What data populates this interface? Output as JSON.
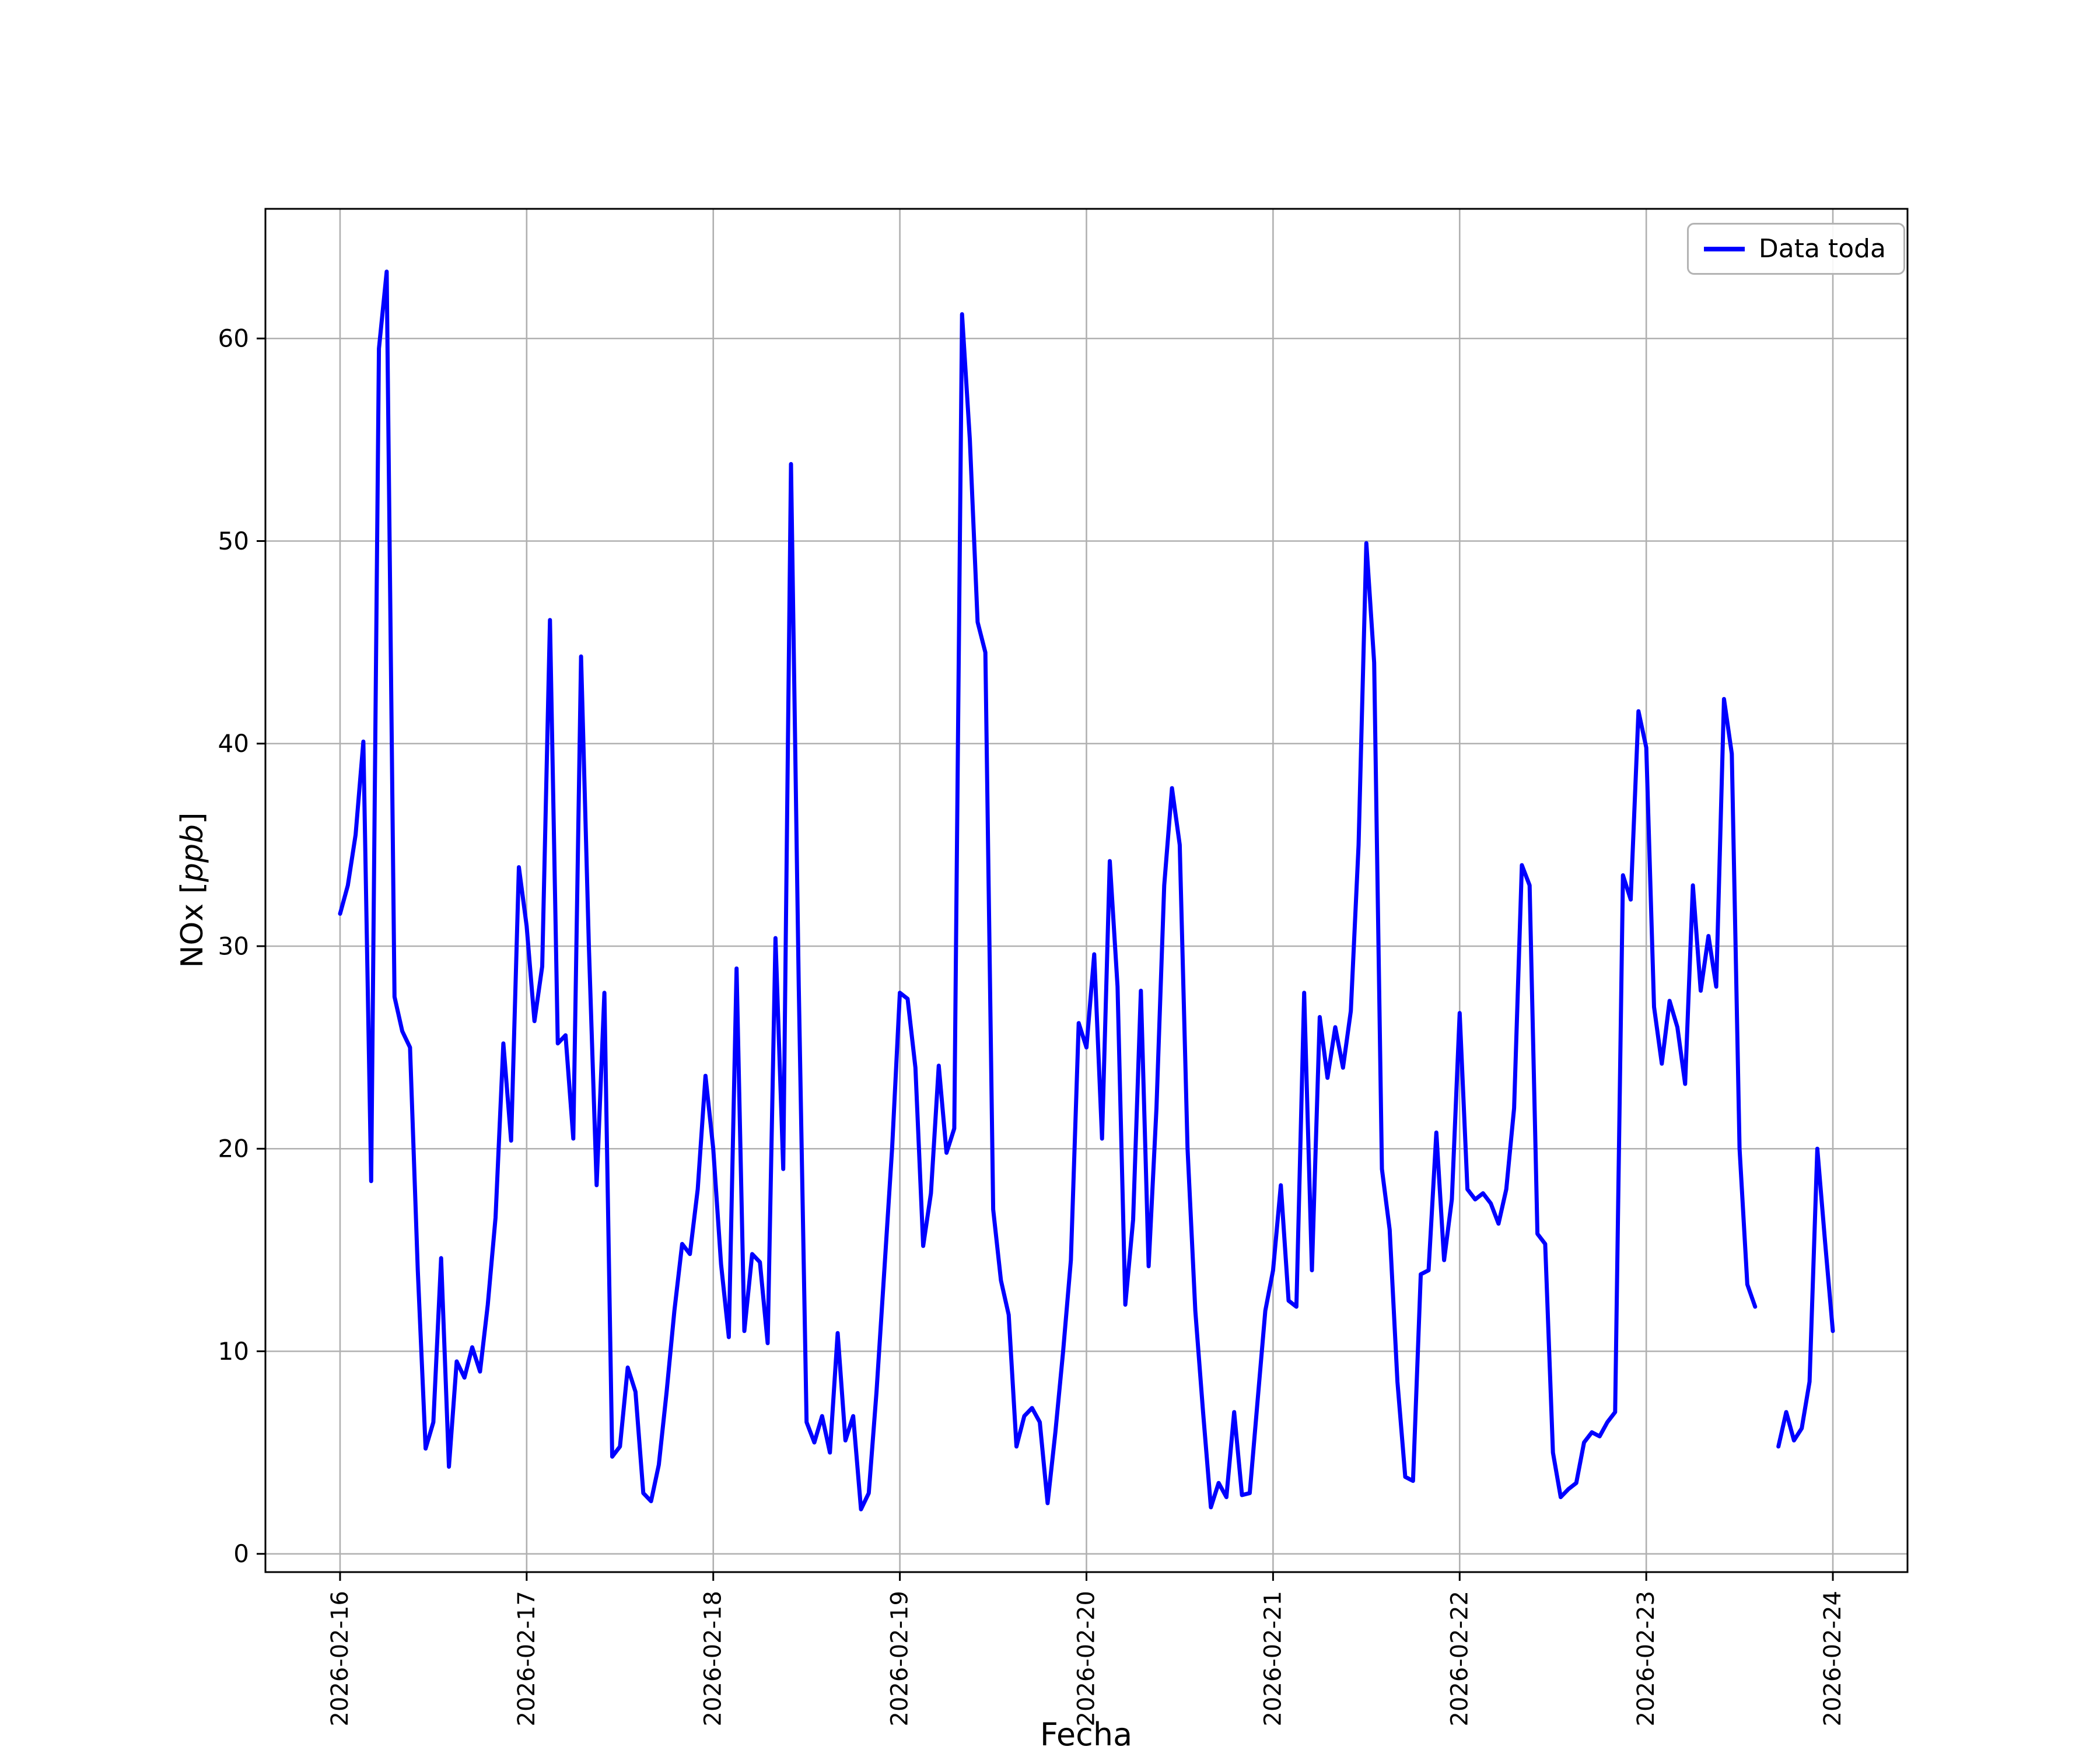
{
  "figure": {
    "background_color": "#ffffff",
    "line_color": "#0000ff",
    "grid_color": "#b0b0b0",
    "spine_color": "#000000",
    "tick_label_color": "#000000"
  },
  "labels": {
    "ylabel_pre": "NOx [",
    "ylabel_unit": "ppb",
    "ylabel_post": "]"
  },
  "chart_data": {
    "type": "line",
    "title": "",
    "xlabel": "Fecha",
    "ylabel": "NOx [ppb]",
    "series_name": "Data toda",
    "legend_position": "upper right",
    "grid": true,
    "x_start": "2026-02-16 00:00",
    "x_step_hours": 1,
    "x_tick_labels": [
      "2026-02-16",
      "2026-02-17",
      "2026-02-18",
      "2026-02-19",
      "2026-02-20",
      "2026-02-21",
      "2026-02-22",
      "2026-02-23",
      "2026-02-24"
    ],
    "x_tick_hours": [
      0,
      24,
      48,
      72,
      96,
      120,
      144,
      168,
      192
    ],
    "y_ticks": [
      0,
      10,
      20,
      30,
      40,
      50,
      60
    ],
    "ylim": [
      -0.9,
      66.4
    ],
    "xlim_hours": [
      -9.6,
      201.6
    ],
    "values": [
      31.6,
      33.0,
      35.5,
      40.1,
      18.4,
      59.5,
      63.3,
      27.5,
      25.8,
      25.0,
      14.0,
      5.2,
      6.5,
      14.6,
      4.3,
      9.5,
      8.7,
      10.2,
      9.0,
      12.3,
      16.6,
      25.2,
      20.4,
      33.9,
      31.0,
      26.3,
      29.0,
      46.1,
      25.2,
      25.6,
      20.5,
      44.3,
      30.0,
      18.2,
      27.7,
      4.8,
      5.3,
      9.2,
      8.0,
      3.0,
      2.6,
      4.4,
      8.0,
      12.0,
      15.3,
      14.8,
      18.0,
      23.6,
      20.0,
      14.3,
      10.7,
      28.9,
      11.0,
      14.8,
      14.4,
      10.4,
      30.4,
      19.0,
      53.8,
      28.0,
      6.5,
      5.5,
      6.8,
      5.0,
      10.9,
      5.6,
      6.8,
      2.2,
      3.0,
      8.0,
      14.0,
      20.0,
      27.7,
      27.4,
      24.0,
      15.2,
      17.8,
      24.1,
      19.8,
      21.0,
      61.2,
      55.0,
      46.0,
      44.5,
      17.0,
      13.5,
      11.8,
      5.3,
      6.8,
      7.2,
      6.5,
      2.5,
      6.0,
      10.0,
      14.5,
      26.2,
      25.0,
      29.6,
      20.5,
      34.2,
      28.0,
      12.3,
      16.5,
      27.8,
      14.2,
      22.0,
      33.0,
      37.8,
      35.0,
      20.0,
      12.0,
      7.0,
      2.3,
      3.5,
      2.8,
      7.0,
      2.9,
      3.0,
      7.5,
      12.0,
      14.0,
      18.2,
      12.5,
      12.2,
      27.7,
      14.0,
      26.5,
      23.5,
      26.0,
      24.0,
      26.8,
      35.0,
      49.9,
      44.0,
      19.0,
      16.0,
      8.5,
      3.8,
      3.6,
      13.8,
      14.0,
      20.8,
      14.5,
      17.5,
      26.7,
      18.0,
      17.5,
      17.8,
      17.3,
      16.3,
      18.0,
      22.0,
      34.0,
      33.0,
      15.8,
      15.3,
      5.0,
      2.8,
      3.2,
      3.5,
      5.5,
      6.0,
      5.8,
      6.5,
      7.0,
      33.5,
      32.3,
      41.6,
      39.8,
      27.0,
      24.2,
      27.3,
      26.0,
      23.2,
      33.0,
      27.8,
      30.5,
      28.0,
      42.2,
      39.5,
      20.0,
      13.3,
      12.2,
      null,
      null,
      5.3,
      7.0,
      5.6,
      6.2,
      8.5,
      20.0,
      15.4,
      11.0
    ]
  }
}
